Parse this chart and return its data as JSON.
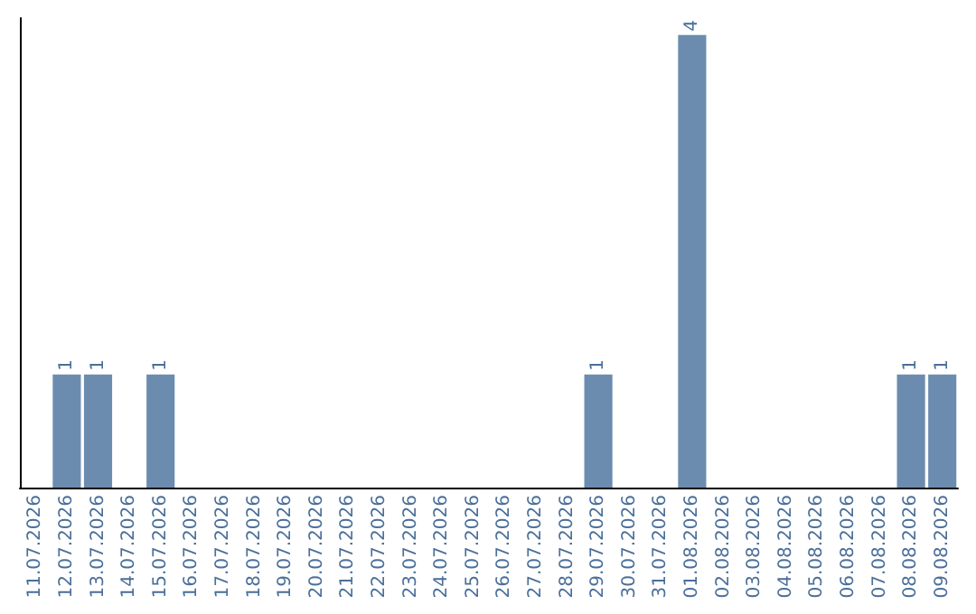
{
  "chart_data": {
    "type": "bar",
    "categories": [
      "11.07.2026",
      "12.07.2026",
      "13.07.2026",
      "14.07.2026",
      "15.07.2026",
      "16.07.2026",
      "17.07.2026",
      "18.07.2026",
      "19.07.2026",
      "20.07.2026",
      "21.07.2026",
      "22.07.2026",
      "23.07.2026",
      "24.07.2026",
      "25.07.2026",
      "26.07.2026",
      "27.07.2026",
      "28.07.2026",
      "29.07.2026",
      "30.07.2026",
      "31.07.2026",
      "01.08.2026",
      "02.08.2026",
      "03.08.2026",
      "04.08.2026",
      "05.08.2026",
      "06.08.2026",
      "07.08.2026",
      "08.08.2026",
      "09.08.2026"
    ],
    "values": [
      0,
      1,
      1,
      0,
      1,
      0,
      0,
      0,
      0,
      0,
      0,
      0,
      0,
      0,
      0,
      0,
      0,
      0,
      1,
      0,
      0,
      4,
      0,
      0,
      0,
      0,
      0,
      0,
      1,
      1
    ],
    "value_labels": [
      null,
      "1",
      "1",
      null,
      "1",
      null,
      null,
      null,
      null,
      null,
      null,
      null,
      null,
      null,
      null,
      null,
      null,
      null,
      "1",
      null,
      null,
      "4",
      null,
      null,
      null,
      null,
      null,
      null,
      "1",
      "1"
    ],
    "color": "#6b8cae",
    "ylim": [
      0,
      4.15
    ],
    "tick_labels": "x",
    "grid": false
  }
}
